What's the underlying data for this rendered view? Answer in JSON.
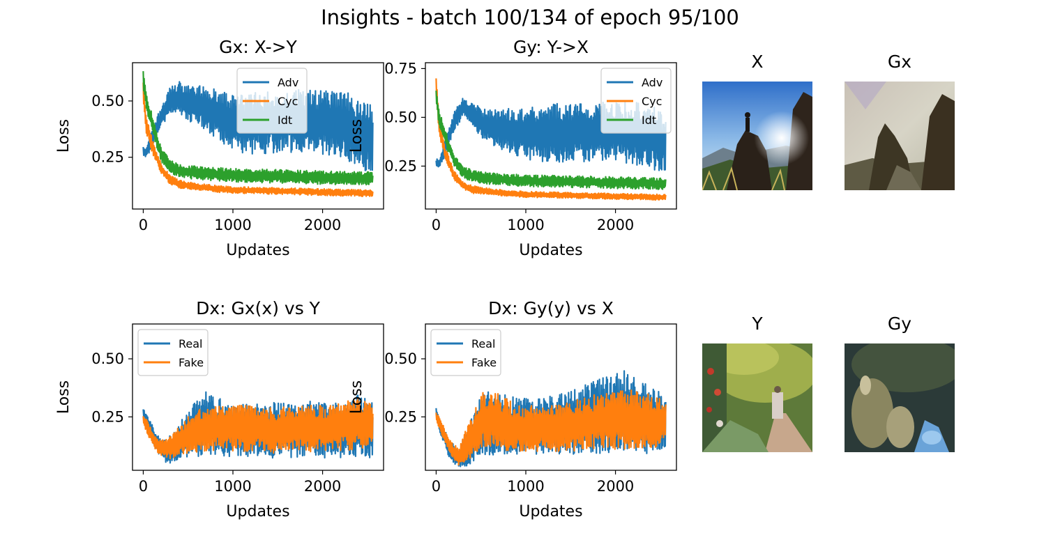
{
  "figure": {
    "title": "Insights - batch 100/134 of epoch 95/100"
  },
  "images": [
    {
      "title": "X"
    },
    {
      "title": "Gx"
    },
    {
      "title": "Y"
    },
    {
      "title": "Gy"
    }
  ],
  "colors": {
    "blue": "#1f77b4",
    "orange": "#ff7f0e",
    "green": "#2ca02c"
  },
  "chart_data": [
    {
      "type": "line",
      "title": "Gx: X->Y",
      "xlabel": "Updates",
      "ylabel": "Loss",
      "xlim": [
        -120,
        2680
      ],
      "ylim": [
        0.02,
        0.67
      ],
      "xticks": [
        "0",
        "1000",
        "2000"
      ],
      "yticks": [
        "0.25",
        "0.50"
      ],
      "legend": "top-center",
      "series": [
        {
          "name": "Adv",
          "color": "#1f77b4",
          "x": [
            0,
            30,
            100,
            200,
            300,
            400,
            500,
            700,
            1000,
            1300,
            1600,
            1900,
            2200,
            2500,
            2560
          ],
          "y": [
            0.28,
            0.27,
            0.33,
            0.43,
            0.5,
            0.52,
            0.49,
            0.47,
            0.4,
            0.4,
            0.41,
            0.41,
            0.4,
            0.34,
            0.33
          ],
          "spread": [
            0.02,
            0.02,
            0.04,
            0.05,
            0.06,
            0.07,
            0.08,
            0.1,
            0.13,
            0.14,
            0.14,
            0.14,
            0.15,
            0.16,
            0.14
          ]
        },
        {
          "name": "Cyc",
          "color": "#ff7f0e",
          "x": [
            0,
            30,
            100,
            200,
            300,
            400,
            600,
            800,
            1000,
            1500,
            2000,
            2560
          ],
          "y": [
            0.55,
            0.4,
            0.3,
            0.2,
            0.15,
            0.13,
            0.12,
            0.11,
            0.105,
            0.1,
            0.095,
            0.09
          ],
          "spread": [
            0.04,
            0.04,
            0.03,
            0.025,
            0.02,
            0.02,
            0.015,
            0.015,
            0.015,
            0.015,
            0.015,
            0.015
          ]
        },
        {
          "name": "Idt",
          "color": "#2ca02c",
          "x": [
            0,
            30,
            100,
            200,
            300,
            400,
            600,
            800,
            1000,
            1500,
            2000,
            2560
          ],
          "y": [
            0.6,
            0.5,
            0.4,
            0.26,
            0.21,
            0.19,
            0.18,
            0.175,
            0.17,
            0.165,
            0.16,
            0.155
          ],
          "spread": [
            0.04,
            0.04,
            0.04,
            0.03,
            0.03,
            0.03,
            0.03,
            0.03,
            0.03,
            0.03,
            0.03,
            0.03
          ]
        }
      ]
    },
    {
      "type": "line",
      "title": "Gy: Y->X",
      "xlabel": "Updates",
      "ylabel": "Loss",
      "xlim": [
        -120,
        2680
      ],
      "ylim": [
        0.03,
        0.78
      ],
      "xticks": [
        "0",
        "1000",
        "2000"
      ],
      "yticks": [
        "0.25",
        "0.50",
        "0.75"
      ],
      "legend": "top-right",
      "series": [
        {
          "name": "Adv",
          "color": "#1f77b4",
          "x": [
            0,
            30,
            100,
            200,
            300,
            400,
            500,
            700,
            1000,
            1300,
            1600,
            1900,
            2200,
            2500,
            2560
          ],
          "y": [
            0.27,
            0.26,
            0.34,
            0.48,
            0.55,
            0.52,
            0.47,
            0.44,
            0.42,
            0.42,
            0.42,
            0.43,
            0.42,
            0.38,
            0.36
          ],
          "spread": [
            0.02,
            0.02,
            0.04,
            0.05,
            0.05,
            0.06,
            0.08,
            0.1,
            0.14,
            0.15,
            0.15,
            0.15,
            0.16,
            0.17,
            0.14
          ]
        },
        {
          "name": "Cyc",
          "color": "#ff7f0e",
          "x": [
            0,
            30,
            100,
            200,
            300,
            400,
            600,
            800,
            1000,
            1500,
            2000,
            2560
          ],
          "y": [
            0.68,
            0.45,
            0.32,
            0.2,
            0.15,
            0.13,
            0.12,
            0.11,
            0.105,
            0.1,
            0.095,
            0.09
          ],
          "spread": [
            0.05,
            0.04,
            0.03,
            0.025,
            0.02,
            0.02,
            0.015,
            0.015,
            0.015,
            0.015,
            0.015,
            0.015
          ]
        },
        {
          "name": "Idt",
          "color": "#2ca02c",
          "x": [
            0,
            30,
            100,
            200,
            300,
            400,
            600,
            800,
            1000,
            1500,
            2000,
            2560
          ],
          "y": [
            0.62,
            0.5,
            0.4,
            0.28,
            0.22,
            0.2,
            0.185,
            0.18,
            0.175,
            0.17,
            0.165,
            0.16
          ],
          "spread": [
            0.04,
            0.04,
            0.04,
            0.03,
            0.03,
            0.03,
            0.03,
            0.03,
            0.03,
            0.03,
            0.03,
            0.03
          ]
        }
      ]
    },
    {
      "type": "line",
      "title": "Dx: Gx(x) vs Y",
      "xlabel": "Updates",
      "ylabel": "Loss",
      "xlim": [
        -120,
        2680
      ],
      "ylim": [
        0.02,
        0.65
      ],
      "xticks": [
        "0",
        "1000",
        "2000"
      ],
      "yticks": [
        "0.25",
        "0.50"
      ],
      "legend": "top-left",
      "series": [
        {
          "name": "Real",
          "color": "#1f77b4",
          "x": [
            0,
            50,
            150,
            250,
            350,
            500,
            700,
            900,
            1200,
            1500,
            1800,
            2100,
            2400,
            2560
          ],
          "y": [
            0.27,
            0.22,
            0.14,
            0.1,
            0.12,
            0.18,
            0.22,
            0.2,
            0.2,
            0.19,
            0.2,
            0.19,
            0.21,
            0.19
          ],
          "spread": [
            0.02,
            0.03,
            0.04,
            0.05,
            0.07,
            0.1,
            0.14,
            0.12,
            0.12,
            0.12,
            0.12,
            0.12,
            0.14,
            0.12
          ]
        },
        {
          "name": "Fake",
          "color": "#ff7f0e",
          "x": [
            0,
            50,
            150,
            250,
            350,
            500,
            700,
            900,
            1200,
            1500,
            1800,
            2100,
            2400,
            2560
          ],
          "y": [
            0.24,
            0.2,
            0.13,
            0.11,
            0.13,
            0.17,
            0.2,
            0.2,
            0.2,
            0.19,
            0.2,
            0.2,
            0.22,
            0.22
          ],
          "spread": [
            0.02,
            0.03,
            0.03,
            0.04,
            0.06,
            0.08,
            0.1,
            0.1,
            0.1,
            0.1,
            0.1,
            0.1,
            0.11,
            0.1
          ]
        }
      ]
    },
    {
      "type": "line",
      "title": "Dx: Gy(y) vs X",
      "xlabel": "Updates",
      "ylabel": "Loss",
      "xlim": [
        -120,
        2680
      ],
      "ylim": [
        0.02,
        0.65
      ],
      "xticks": [
        "0",
        "1000",
        "2000"
      ],
      "yticks": [
        "0.25",
        "0.50"
      ],
      "legend": "top-left",
      "series": [
        {
          "name": "Real",
          "color": "#1f77b4",
          "x": [
            0,
            50,
            150,
            250,
            350,
            500,
            700,
            900,
            1200,
            1500,
            1800,
            2100,
            2400,
            2560
          ],
          "y": [
            0.27,
            0.2,
            0.11,
            0.07,
            0.12,
            0.22,
            0.23,
            0.21,
            0.21,
            0.23,
            0.25,
            0.27,
            0.24,
            0.22
          ],
          "spread": [
            0.02,
            0.03,
            0.04,
            0.04,
            0.08,
            0.14,
            0.14,
            0.12,
            0.12,
            0.14,
            0.16,
            0.18,
            0.15,
            0.12
          ]
        },
        {
          "name": "Fake",
          "color": "#ff7f0e",
          "x": [
            0,
            50,
            150,
            250,
            350,
            500,
            700,
            900,
            1200,
            1500,
            1800,
            2100,
            2400,
            2560
          ],
          "y": [
            0.25,
            0.21,
            0.12,
            0.08,
            0.13,
            0.24,
            0.23,
            0.2,
            0.2,
            0.21,
            0.23,
            0.24,
            0.23,
            0.23
          ],
          "spread": [
            0.02,
            0.03,
            0.03,
            0.04,
            0.08,
            0.12,
            0.12,
            0.1,
            0.1,
            0.11,
            0.12,
            0.13,
            0.12,
            0.1
          ]
        }
      ]
    }
  ]
}
